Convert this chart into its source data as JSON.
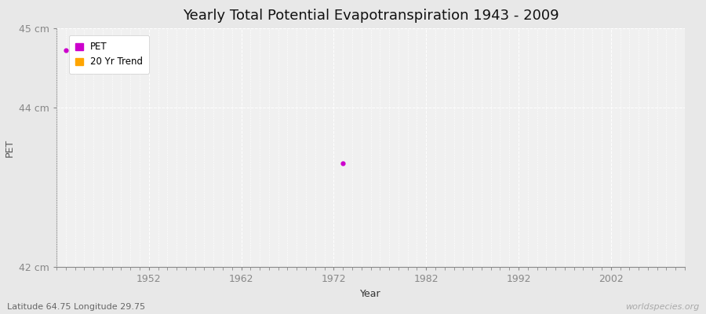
{
  "title": "Yearly Total Potential Evapotranspiration 1943 - 2009",
  "xlabel": "Year",
  "ylabel": "PET",
  "pet_points": [
    [
      1943,
      44.72
    ],
    [
      1973,
      43.3
    ]
  ],
  "pet_color": "#cc00cc",
  "trend_color": "#ffa500",
  "ylim": [
    42,
    45
  ],
  "xlim": [
    1942,
    2010
  ],
  "ytick_labels": [
    "42 cm",
    "44 cm",
    "45 cm"
  ],
  "ytick_values": [
    42,
    44,
    45
  ],
  "xtick_values": [
    1952,
    1962,
    1972,
    1982,
    1992,
    2002
  ],
  "fig_background_color": "#e8e8e8",
  "plot_background_color": "#f0f0f0",
  "grid_color": "#ffffff",
  "legend_labels": [
    "PET",
    "20 Yr Trend"
  ],
  "watermark": "worldspecies.org",
  "footnote": "Latitude 64.75 Longitude 29.75",
  "title_fontsize": 13,
  "axis_label_fontsize": 9,
  "tick_fontsize": 9,
  "tick_color": "#888888"
}
